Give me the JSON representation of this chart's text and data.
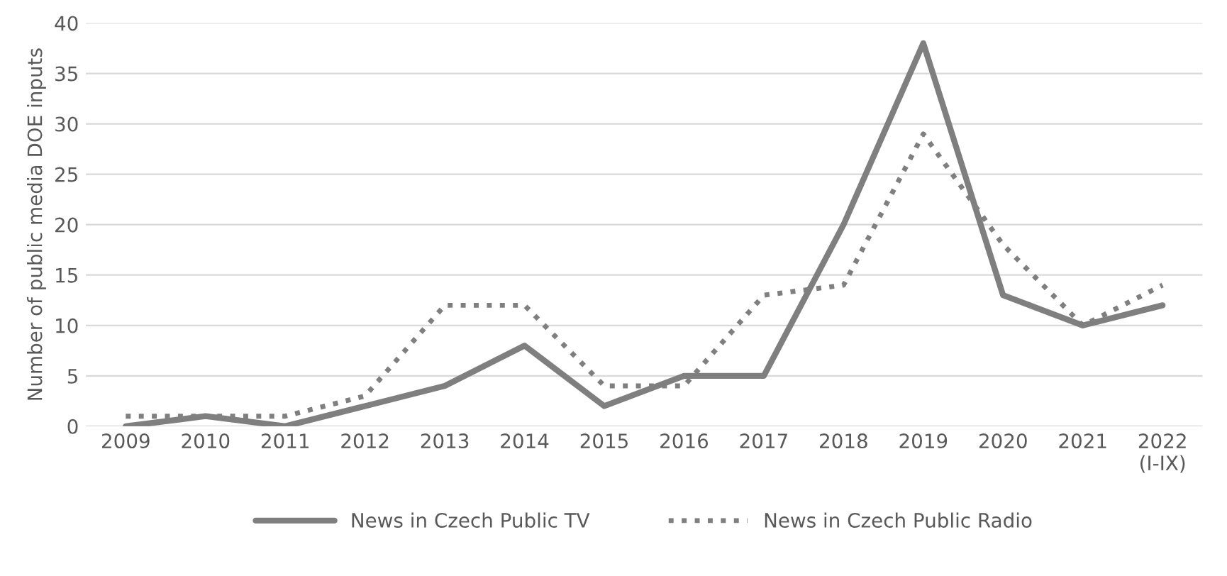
{
  "chart_data": {
    "type": "line",
    "ylabel": "Number of public media DOE inputs",
    "categories": [
      "2009",
      "2010",
      "2011",
      "2012",
      "2013",
      "2014",
      "2015",
      "2016",
      "2017",
      "2018",
      "2019",
      "2020",
      "2021",
      "2022\n(I-IX)"
    ],
    "series": [
      {
        "name": "News in Czech Public TV",
        "color": "#7f7f7f",
        "line_style": "solid",
        "values": [
          0,
          1,
          0,
          2,
          4,
          8,
          2,
          5,
          5,
          20,
          38,
          13,
          10,
          12
        ]
      },
      {
        "name": "News in Czech Public Radio",
        "color": "#7f7f7f",
        "line_style": "dotted",
        "values": [
          1,
          1,
          1,
          3,
          12,
          12,
          4,
          4,
          13,
          14,
          29,
          18,
          10,
          14
        ]
      }
    ],
    "ylim": [
      0,
      40
    ],
    "yticks": [
      0,
      5,
      10,
      15,
      20,
      25,
      30,
      35,
      40
    ],
    "grid": "y",
    "legend": "bottom",
    "marker": "none"
  }
}
